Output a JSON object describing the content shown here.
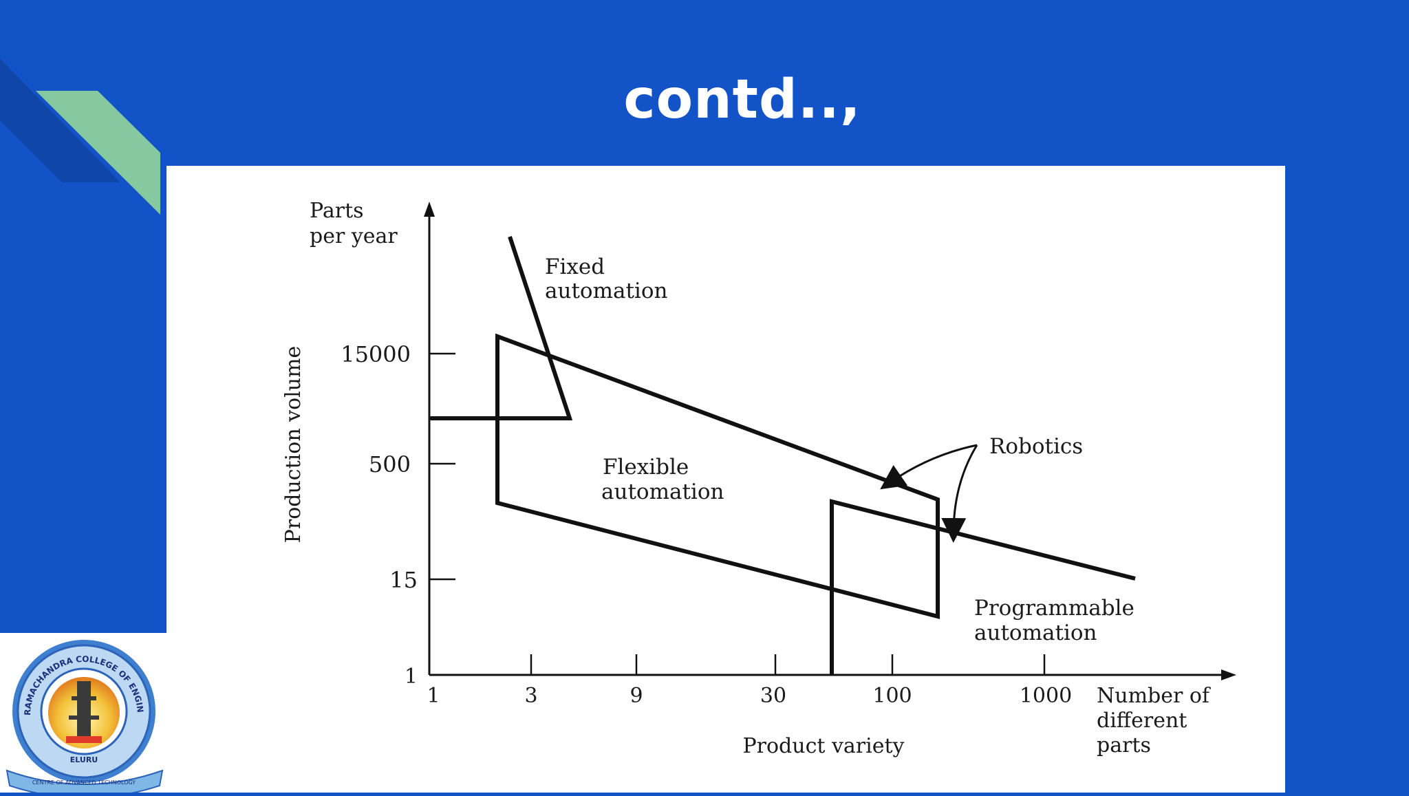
{
  "slide": {
    "title": "contd..,"
  },
  "colors": {
    "background": "#1253C8",
    "accent_green": "#86C8A0",
    "accent_dark_blue": "#0F46A8",
    "panel": "#ffffff",
    "ink": "#111111"
  },
  "diagram": {
    "y_axis_title": "Parts per year",
    "y_axis_title_lines": [
      "Parts",
      "per year"
    ],
    "y_side_label": "Production volume",
    "y_ticks": [
      "15000",
      "500",
      "15",
      "1"
    ],
    "x_ticks": [
      "1",
      "3",
      "9",
      "30",
      "100",
      "1000"
    ],
    "x_axis_title_lines": [
      "Number of",
      "different",
      "parts"
    ],
    "x_caption": "Product variety",
    "regions": {
      "fixed": [
        "Fixed",
        "automation"
      ],
      "flexible": [
        "Flexible",
        "automation"
      ],
      "robotics": "Robotics",
      "programmable": [
        "Programmable",
        "automation"
      ]
    }
  },
  "logo": {
    "name": "RAMACHANDRA COLLEGE OF ENGINEERING",
    "place": "ELURU",
    "ribbon": "CENTRE OF ADVANCED TECHNOLOGY"
  }
}
